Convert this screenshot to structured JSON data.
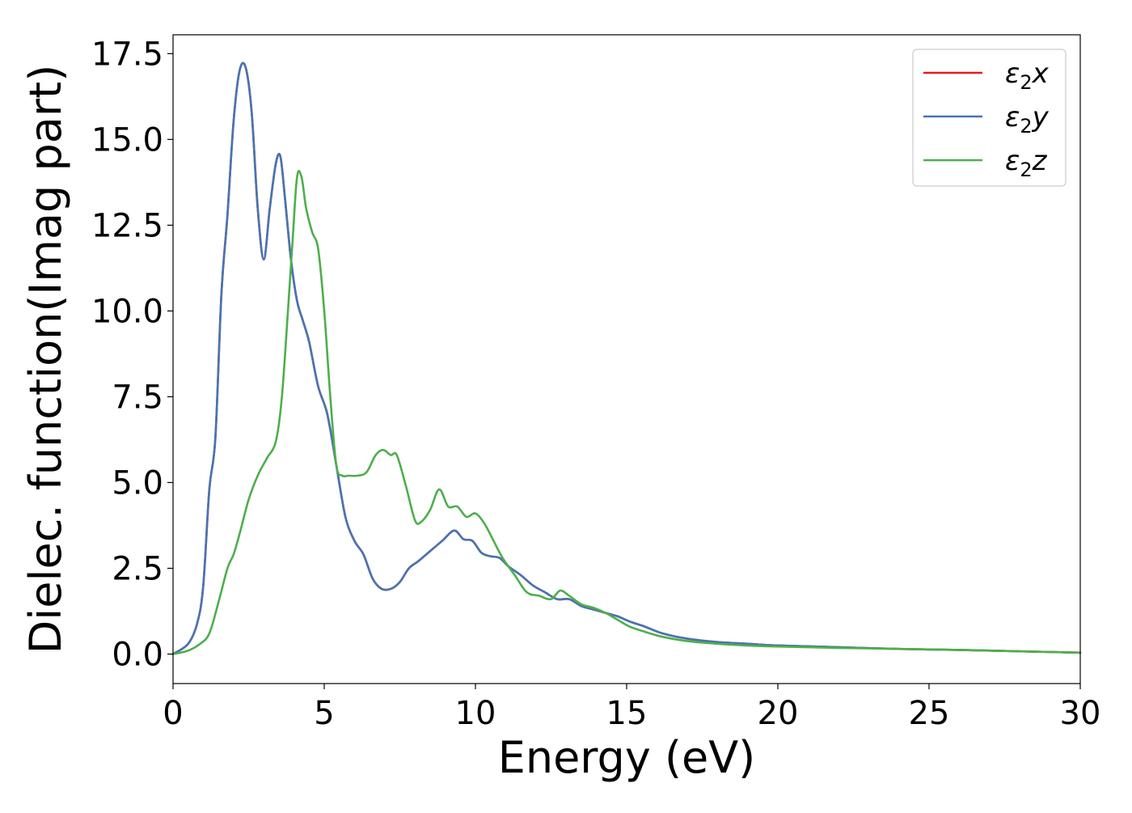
{
  "chart_data": {
    "type": "line",
    "xlabel": "Energy (eV)",
    "ylabel": "Dielec. function(Imag part)",
    "xlim": [
      0,
      30
    ],
    "ylim": [
      -0.86,
      18.05
    ],
    "xticks": [
      0,
      5,
      10,
      15,
      20,
      25,
      30
    ],
    "xtick_labels": [
      "0",
      "5",
      "10",
      "15",
      "20",
      "25",
      "30"
    ],
    "yticks": [
      0.0,
      2.5,
      5.0,
      7.5,
      10.0,
      12.5,
      15.0,
      17.5
    ],
    "ytick_labels": [
      "0.0",
      "2.5",
      "5.0",
      "7.5",
      "10.0",
      "12.5",
      "15.0",
      "17.5"
    ],
    "grid": false,
    "legend_position": "top-right",
    "series": [
      {
        "name": "ε₂x",
        "label_base": "ε",
        "label_sub": "2",
        "label_var": "x",
        "color": "#e41a1c",
        "x": [
          0,
          0.5,
          0.8,
          1.0,
          1.2,
          1.4,
          1.6,
          1.8,
          2.0,
          2.2,
          2.4,
          2.6,
          2.8,
          3.0,
          3.2,
          3.4,
          3.55,
          3.7,
          3.9,
          4.1,
          4.3,
          4.5,
          4.8,
          5.1,
          5.4,
          5.7,
          6.0,
          6.3,
          6.6,
          6.9,
          7.2,
          7.5,
          7.8,
          8.1,
          8.5,
          8.9,
          9.3,
          9.6,
          9.9,
          10.2,
          10.5,
          10.8,
          11.1,
          11.5,
          11.9,
          12.3,
          12.7,
          13.1,
          13.5,
          13.9,
          14.3,
          14.7,
          15.1,
          15.6,
          16.2,
          17.0,
          18.0,
          19.0,
          20.0,
          22.0,
          24.0,
          26.0,
          28.0,
          30.0
        ],
        "y": [
          0.0,
          0.3,
          0.9,
          2.0,
          4.8,
          6.3,
          10.5,
          12.8,
          15.5,
          17.0,
          17.1,
          15.8,
          13.0,
          11.5,
          13.0,
          14.3,
          14.5,
          13.3,
          11.5,
          10.3,
          9.7,
          9.1,
          7.8,
          7.0,
          5.5,
          4.0,
          3.3,
          2.9,
          2.2,
          1.9,
          1.9,
          2.1,
          2.5,
          2.7,
          3.0,
          3.3,
          3.6,
          3.35,
          3.3,
          2.95,
          2.85,
          2.8,
          2.55,
          2.3,
          2.0,
          1.8,
          1.6,
          1.6,
          1.4,
          1.3,
          1.2,
          1.1,
          0.95,
          0.8,
          0.6,
          0.45,
          0.35,
          0.3,
          0.25,
          0.2,
          0.15,
          0.12,
          0.08,
          0.04
        ]
      },
      {
        "name": "ε₂y",
        "label_base": "ε",
        "label_sub": "2",
        "label_var": "y",
        "color": "#4575b4",
        "x": [
          0,
          0.5,
          0.8,
          1.0,
          1.2,
          1.4,
          1.6,
          1.8,
          2.0,
          2.2,
          2.4,
          2.6,
          2.8,
          3.0,
          3.2,
          3.4,
          3.55,
          3.7,
          3.9,
          4.1,
          4.3,
          4.5,
          4.8,
          5.1,
          5.4,
          5.7,
          6.0,
          6.3,
          6.6,
          6.9,
          7.2,
          7.5,
          7.8,
          8.1,
          8.5,
          8.9,
          9.3,
          9.6,
          9.9,
          10.2,
          10.5,
          10.8,
          11.1,
          11.5,
          11.9,
          12.3,
          12.7,
          13.1,
          13.5,
          13.9,
          14.3,
          14.7,
          15.1,
          15.6,
          16.2,
          17.0,
          18.0,
          19.0,
          20.0,
          22.0,
          24.0,
          26.0,
          28.0,
          30.0
        ],
        "y": [
          0.0,
          0.3,
          0.9,
          2.0,
          4.8,
          6.3,
          10.5,
          12.8,
          15.5,
          17.0,
          17.1,
          15.8,
          13.0,
          11.5,
          13.0,
          14.3,
          14.5,
          13.3,
          11.5,
          10.3,
          9.7,
          9.1,
          7.8,
          7.0,
          5.5,
          4.0,
          3.3,
          2.9,
          2.2,
          1.9,
          1.9,
          2.1,
          2.5,
          2.7,
          3.0,
          3.3,
          3.6,
          3.35,
          3.3,
          2.95,
          2.85,
          2.8,
          2.55,
          2.3,
          2.0,
          1.8,
          1.6,
          1.6,
          1.4,
          1.3,
          1.2,
          1.1,
          0.95,
          0.8,
          0.6,
          0.45,
          0.35,
          0.3,
          0.25,
          0.2,
          0.15,
          0.12,
          0.08,
          0.04
        ]
      },
      {
        "name": "ε₂z",
        "label_base": "ε",
        "label_sub": "2",
        "label_var": "z",
        "color": "#4daf4a",
        "x": [
          0,
          0.5,
          0.9,
          1.2,
          1.5,
          1.8,
          2.0,
          2.2,
          2.5,
          2.8,
          3.1,
          3.4,
          3.6,
          3.8,
          3.95,
          4.1,
          4.25,
          4.4,
          4.6,
          4.8,
          5.0,
          5.2,
          5.4,
          5.6,
          5.8,
          6.1,
          6.4,
          6.7,
          6.95,
          7.2,
          7.4,
          7.7,
          8.0,
          8.2,
          8.5,
          8.8,
          9.1,
          9.4,
          9.7,
          10.0,
          10.3,
          10.6,
          10.9,
          11.3,
          11.7,
          12.1,
          12.5,
          12.8,
          13.1,
          13.5,
          13.9,
          14.3,
          14.7,
          15.1,
          15.6,
          16.2,
          17.0,
          18.0,
          19.0,
          20.0,
          22.0,
          24.0,
          26.0,
          28.0,
          30.0
        ],
        "y": [
          0.0,
          0.1,
          0.3,
          0.6,
          1.5,
          2.5,
          2.9,
          3.5,
          4.5,
          5.2,
          5.7,
          6.2,
          7.5,
          10.0,
          12.0,
          13.9,
          13.9,
          13.0,
          12.3,
          11.8,
          10.0,
          7.5,
          5.5,
          5.2,
          5.2,
          5.2,
          5.3,
          5.8,
          5.95,
          5.8,
          5.8,
          4.9,
          3.9,
          3.85,
          4.2,
          4.8,
          4.3,
          4.3,
          4.0,
          4.1,
          3.8,
          3.3,
          2.8,
          2.3,
          1.8,
          1.7,
          1.6,
          1.85,
          1.7,
          1.45,
          1.35,
          1.2,
          1.0,
          0.8,
          0.65,
          0.5,
          0.38,
          0.3,
          0.25,
          0.22,
          0.18,
          0.15,
          0.12,
          0.08,
          0.04
        ]
      }
    ]
  }
}
